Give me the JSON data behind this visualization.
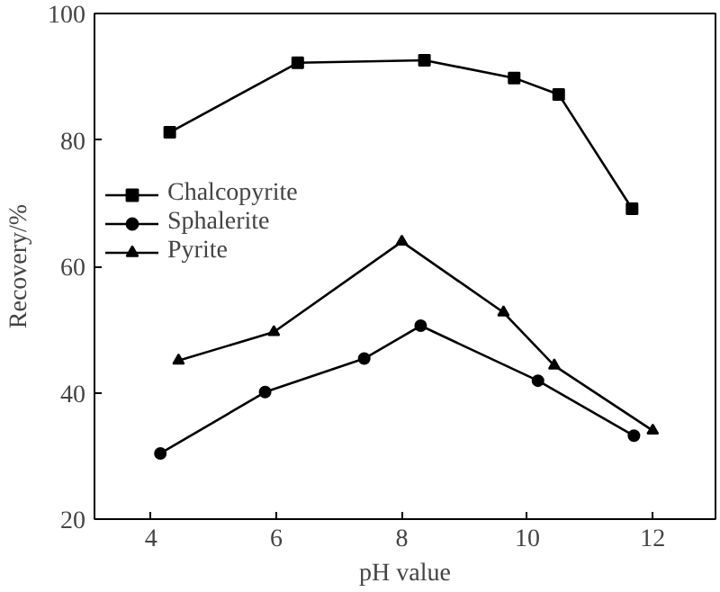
{
  "chart_data": {
    "type": "line",
    "xlabel": "pH value",
    "ylabel": "Recovery/%",
    "xlim": [
      3.1,
      13
    ],
    "xticks": [
      4,
      6,
      8,
      10,
      12
    ],
    "ylim": [
      20,
      100
    ],
    "yticks": [
      20,
      40,
      60,
      80,
      100
    ],
    "grid": false,
    "legend": "left",
    "line_style": "solid",
    "series": [
      {
        "name": "Chalcopyrite",
        "color": "#000000",
        "marker": "square",
        "x": [
          4.3,
          6.34,
          8.36,
          9.79,
          10.5,
          11.67
        ],
        "values": [
          81.2,
          92.2,
          92.6,
          89.8,
          87.2,
          69.1
        ]
      },
      {
        "name": "Sphalerite",
        "color": "#000000",
        "marker": "circle",
        "x": [
          4.15,
          5.82,
          7.4,
          8.3,
          10.17,
          11.7
        ],
        "values": [
          30.4,
          40.1,
          45.4,
          50.6,
          41.9,
          33.2
        ]
      },
      {
        "name": "Pyrite",
        "color": "#000000",
        "marker": "triangle",
        "x": [
          4.44,
          5.96,
          8.0,
          9.62,
          10.43,
          12.0
        ],
        "values": [
          45.1,
          49.6,
          63.9,
          52.7,
          44.3,
          34.0
        ]
      }
    ]
  }
}
